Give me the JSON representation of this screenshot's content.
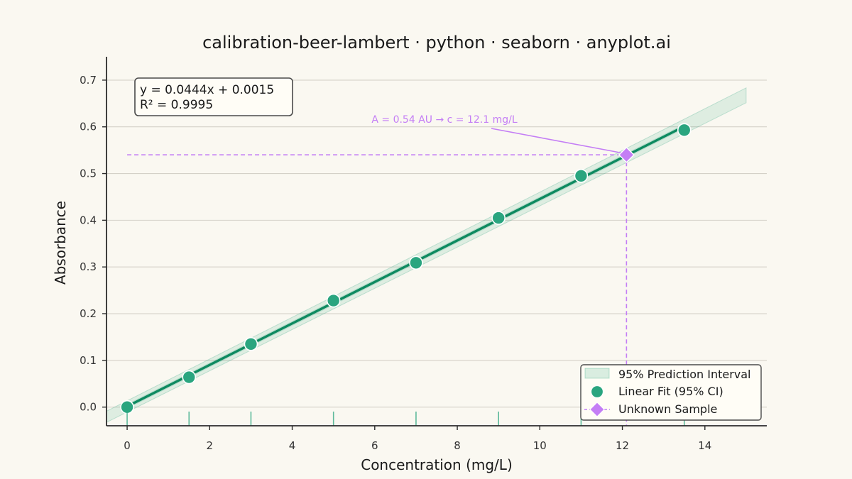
{
  "chart_data": {
    "type": "scatter",
    "title": "calibration-beer-lambert · python · seaborn · anyplot.ai",
    "xlabel": "Concentration (mg/L)",
    "ylabel": "Absorbance",
    "xlim": [
      -0.5,
      15.5
    ],
    "ylim": [
      -0.04,
      0.75
    ],
    "x_ticks": [
      0,
      2,
      4,
      6,
      8,
      10,
      12,
      14
    ],
    "y_ticks": [
      0.0,
      0.1,
      0.2,
      0.3,
      0.4,
      0.5,
      0.6,
      0.7
    ],
    "x_tick_labels": [
      "0",
      "2",
      "4",
      "6",
      "8",
      "10",
      "12",
      "14"
    ],
    "y_tick_labels": [
      "0.0",
      "0.1",
      "0.2",
      "0.3",
      "0.4",
      "0.5",
      "0.6",
      "0.7"
    ],
    "grid": "horizontal",
    "legend_position": "bottom-right",
    "series": [
      {
        "name": "Linear Fit (95% CI)",
        "kind": "points",
        "color": "#2AA57F",
        "x": [
          0,
          1.5,
          3,
          5,
          7,
          9,
          11,
          13.5
        ],
        "y": [
          0.0,
          0.064,
          0.135,
          0.228,
          0.309,
          0.405,
          0.495,
          0.593
        ]
      },
      {
        "name": "Unknown Sample",
        "kind": "marker",
        "color": "#C47EF5",
        "x": [
          12.1
        ],
        "y": [
          0.54
        ]
      }
    ],
    "fit": {
      "slope": 0.0444,
      "intercept": 0.0015,
      "x_range": [
        -0.5,
        15
      ],
      "color": "#0E8A60"
    },
    "prediction_interval": {
      "name": "95% Prediction Interval",
      "half_width_start": 0.012,
      "half_width_end": 0.016,
      "color": "#2AA57F"
    },
    "confidence_band_half_width": 0.005,
    "equation_box": {
      "line1": "y = 0.0444x + 0.0015",
      "line2": "R² = 0.9995"
    },
    "annotation": {
      "text": "A = 0.54 AU  →  c = 12.1 mg/L",
      "color": "#C47EF5"
    },
    "rug_x": [
      0,
      1.5,
      3,
      5,
      7,
      9,
      11,
      13.5
    ]
  }
}
